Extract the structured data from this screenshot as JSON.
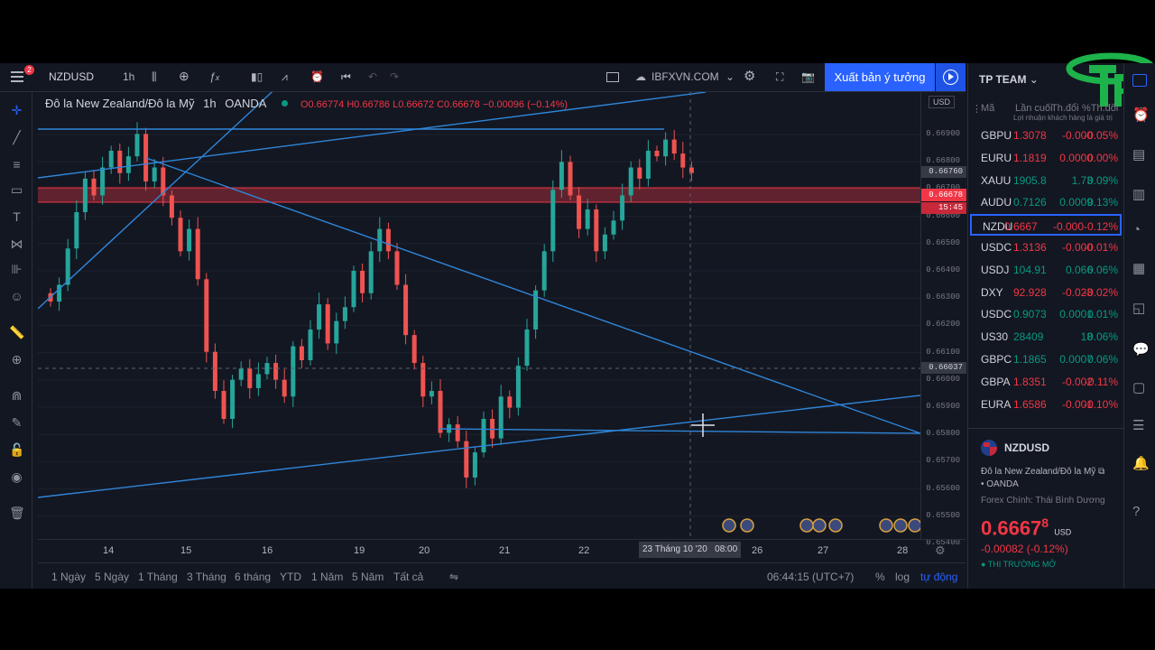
{
  "toolbar": {
    "symbol": "NZDUSD",
    "interval": "1h",
    "site": "IBFXVN.COM",
    "publish": "Xuất bản ý tưởng",
    "notif": "2"
  },
  "legend": {
    "name": "Đô la New Zealand/Đô la Mỹ",
    "interval": "1h",
    "broker": "OANDA",
    "o": "O0.66774",
    "h": "H0.66786",
    "l": "L0.66672",
    "c": "C0.66678",
    "chg": "−0.00096 (−0.14%)"
  },
  "price_axis": {
    "currency": "USD",
    "ticks": [
      "0.66900",
      "0.66800",
      "0.66700",
      "0.66600",
      "0.66500",
      "0.66400",
      "0.66300",
      "0.66200",
      "0.66100",
      "0.66000",
      "0.65900",
      "0.65800",
      "0.65700",
      "0.65600",
      "0.65500",
      "0.65400"
    ],
    "hl1": "0.66760",
    "hl2": "0.66678",
    "countdown": "15:45",
    "cross": "0.66037"
  },
  "time_axis": {
    "labels": [
      "14",
      "15",
      "16",
      "19",
      "20",
      "21",
      "22",
      "26",
      "27",
      "28"
    ],
    "cursor": "23 Tháng 10 '20",
    "cursor_time": "08:00"
  },
  "bottom": {
    "ranges": [
      "1 Ngày",
      "5 Ngày",
      "1 Tháng",
      "3 Tháng",
      "6 tháng",
      "YTD",
      "1 Năm",
      "5 Năm",
      "Tất cả"
    ],
    "clock": "06:44:15 (UTC+7)",
    "pct": "%",
    "log": "log",
    "auto": "tự động"
  },
  "watchlist": {
    "team": "TP TEAM",
    "col_sym": "Mã",
    "col_last": "Lần cuối",
    "col_chg": "Th.đổi",
    "col_pct": "%Th.đổi",
    "brand_note": "Lợi nhuận khách hàng là giá trị",
    "rows": [
      {
        "sym": "GBPU",
        "last": "1.3078",
        "chg": "-0.000",
        "pct": "-0.05%",
        "neg": true
      },
      {
        "sym": "EURU",
        "last": "1.1819",
        "chg": "0.0000",
        "pct": "0.00%",
        "neg": true
      },
      {
        "sym": "XAUU",
        "last": "1905.8",
        "chg": "1.73",
        "pct": "0.09%",
        "neg": false
      },
      {
        "sym": "AUDU",
        "last": "0.7126",
        "chg": "0.0009",
        "pct": "0.13%",
        "neg": false
      },
      {
        "sym": "NZDU",
        "last": "0.6667",
        "chg": "-0.000",
        "pct": "-0.12%",
        "neg": true
      },
      {
        "sym": "USDC",
        "last": "1.3136",
        "chg": "-0.000",
        "pct": "-0.01%",
        "neg": true
      },
      {
        "sym": "USDJ",
        "last": "104.91",
        "chg": "0.066",
        "pct": "0.06%",
        "neg": false
      },
      {
        "sym": "DXY",
        "last": "92.928",
        "chg": "-0.023",
        "pct": "-0.02%",
        "neg": true
      },
      {
        "sym": "USDC",
        "last": "0.9073",
        "chg": "0.0001",
        "pct": "0.01%",
        "neg": false
      },
      {
        "sym": "US30",
        "last": "28409",
        "chg": "18",
        "pct": "0.06%",
        "neg": false
      },
      {
        "sym": "GBPC",
        "last": "1.1865",
        "chg": "0.0007",
        "pct": "0.06%",
        "neg": false
      },
      {
        "sym": "GBPA",
        "last": "1.8351",
        "chg": "-0.002",
        "pct": "-0.11%",
        "neg": true
      },
      {
        "sym": "EURA",
        "last": "1.6586",
        "chg": "-0.001",
        "pct": "-0.10%",
        "neg": true
      }
    ]
  },
  "details": {
    "symbol": "NZDUSD",
    "name": "Đô la New Zealand/Đô la Mỹ",
    "broker": "OANDA",
    "session": "Forex Chính: Thái Bình Dương",
    "price_main": "0.6667",
    "price_sup": "8",
    "currency": "USD",
    "change": "-0.00082 (-0.12%)",
    "market": "THỊ TRƯỜNG MỞ"
  },
  "chart_data": {
    "type": "candlestick",
    "symbol": "NZDUSD",
    "interval": "1h",
    "ylim": [
      0.6537,
      0.6697
    ],
    "x_labels": [
      "14",
      "15",
      "16",
      "19",
      "20",
      "21",
      "22",
      "23",
      "26",
      "27",
      "28"
    ],
    "closes": [
      0.6622,
      0.6628,
      0.6641,
      0.6654,
      0.6666,
      0.666,
      0.667,
      0.6676,
      0.6668,
      0.6674,
      0.6682,
      0.6665,
      0.667,
      0.666,
      0.6652,
      0.664,
      0.6648,
      0.663,
      0.6604,
      0.659,
      0.658,
      0.6594,
      0.6598,
      0.6591,
      0.6596,
      0.66,
      0.6594,
      0.6588,
      0.6606,
      0.6601,
      0.6612,
      0.6621,
      0.6607,
      0.6615,
      0.662,
      0.6633,
      0.6625,
      0.664,
      0.6648,
      0.664,
      0.6628,
      0.661,
      0.66,
      0.6588,
      0.659,
      0.6575,
      0.6578,
      0.6572,
      0.6559,
      0.6568,
      0.658,
      0.6573,
      0.6588,
      0.6584,
      0.6599,
      0.6612,
      0.6626,
      0.664,
      0.6662,
      0.6672,
      0.666,
      0.6648,
      0.6655,
      0.664,
      0.6646,
      0.6651,
      0.666,
      0.667,
      0.6666,
      0.6676,
      0.6674,
      0.668,
      0.6675,
      0.667,
      0.6668
    ]
  },
  "colors": {
    "bg": "#131722",
    "up": "#26a69a",
    "down": "#ef5350",
    "accent": "#2962ff",
    "line": "#2f86d9"
  }
}
